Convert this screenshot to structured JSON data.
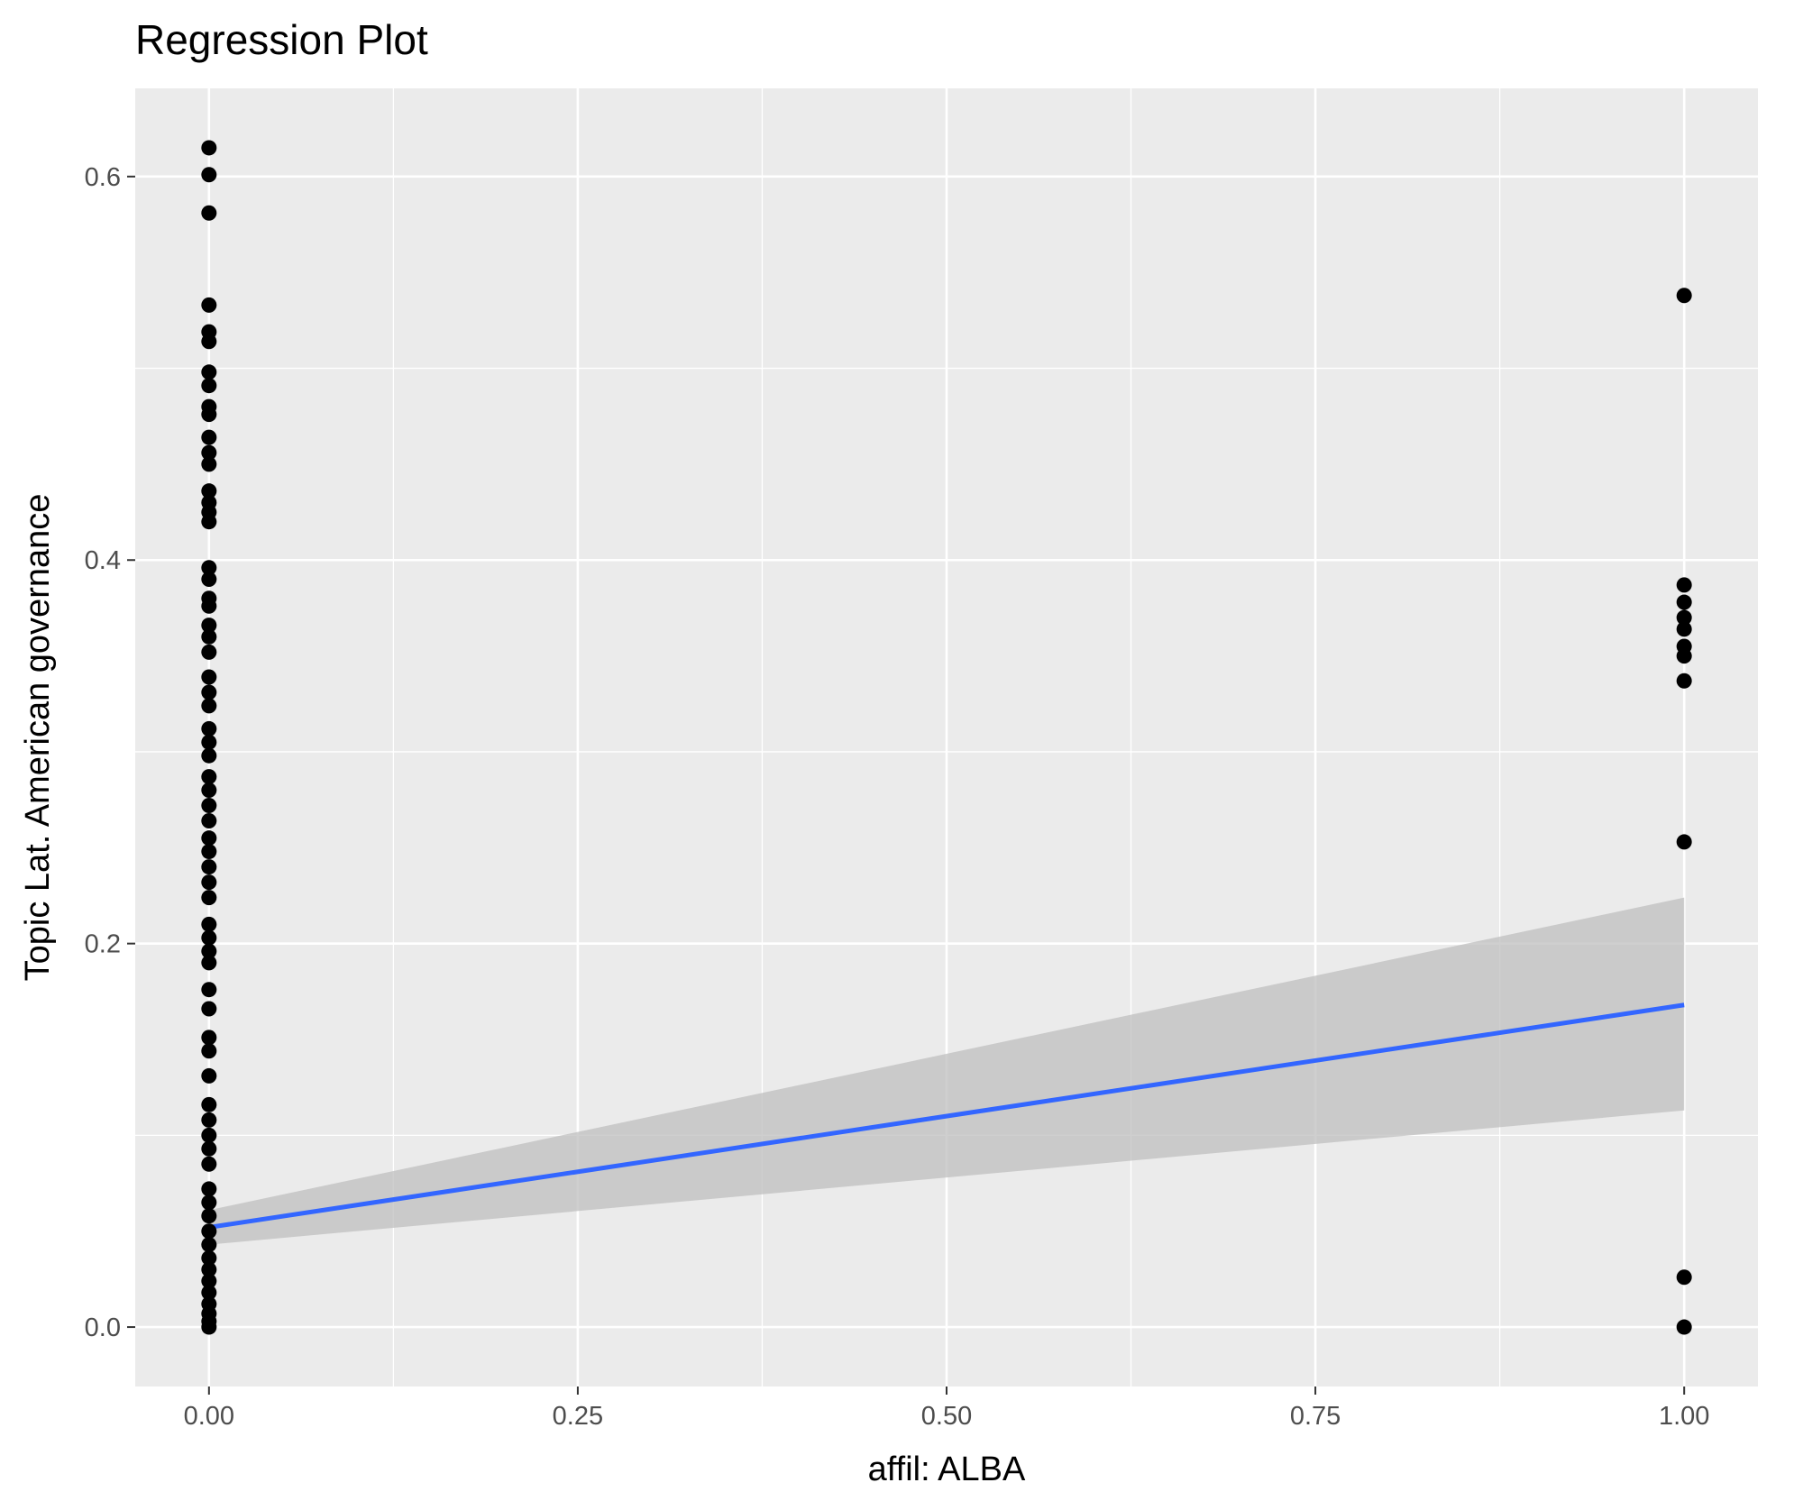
{
  "chart_data": {
    "type": "scatter",
    "title": "Regression Plot",
    "xlabel": "affil: ALBA",
    "ylabel": "Topic Lat. American governance",
    "xlim": [
      -0.05,
      1.05
    ],
    "ylim": [
      -0.031,
      0.646
    ],
    "x_ticks": [
      0.0,
      0.25,
      0.5,
      0.75,
      1.0
    ],
    "x_tick_labels": [
      "0.00",
      "0.25",
      "0.50",
      "0.75",
      "1.00"
    ],
    "y_ticks": [
      0.0,
      0.2,
      0.4,
      0.6
    ],
    "y_tick_labels": [
      "0.0",
      "0.2",
      "0.4",
      "0.6"
    ],
    "grid": true,
    "legend": "none",
    "points": [
      {
        "x": 0,
        "y": 0.615
      },
      {
        "x": 0,
        "y": 0.601
      },
      {
        "x": 0,
        "y": 0.581
      },
      {
        "x": 0,
        "y": 0.533
      },
      {
        "x": 0,
        "y": 0.519
      },
      {
        "x": 0,
        "y": 0.514
      },
      {
        "x": 0,
        "y": 0.498
      },
      {
        "x": 0,
        "y": 0.491
      },
      {
        "x": 0,
        "y": 0.48
      },
      {
        "x": 0,
        "y": 0.476
      },
      {
        "x": 0,
        "y": 0.464
      },
      {
        "x": 0,
        "y": 0.456
      },
      {
        "x": 0,
        "y": 0.45
      },
      {
        "x": 0,
        "y": 0.436
      },
      {
        "x": 0,
        "y": 0.43
      },
      {
        "x": 0,
        "y": 0.425
      },
      {
        "x": 0,
        "y": 0.42
      },
      {
        "x": 0,
        "y": 0.396
      },
      {
        "x": 0,
        "y": 0.39
      },
      {
        "x": 0,
        "y": 0.38
      },
      {
        "x": 0,
        "y": 0.376
      },
      {
        "x": 0,
        "y": 0.366
      },
      {
        "x": 0,
        "y": 0.36
      },
      {
        "x": 0,
        "y": 0.352
      },
      {
        "x": 0,
        "y": 0.339
      },
      {
        "x": 0,
        "y": 0.331
      },
      {
        "x": 0,
        "y": 0.324
      },
      {
        "x": 0,
        "y": 0.312
      },
      {
        "x": 0,
        "y": 0.305
      },
      {
        "x": 0,
        "y": 0.298
      },
      {
        "x": 0,
        "y": 0.287
      },
      {
        "x": 0,
        "y": 0.28
      },
      {
        "x": 0,
        "y": 0.272
      },
      {
        "x": 0,
        "y": 0.264
      },
      {
        "x": 0,
        "y": 0.255
      },
      {
        "x": 0,
        "y": 0.248
      },
      {
        "x": 0,
        "y": 0.24
      },
      {
        "x": 0,
        "y": 0.232
      },
      {
        "x": 0,
        "y": 0.224
      },
      {
        "x": 0,
        "y": 0.21
      },
      {
        "x": 0,
        "y": 0.203
      },
      {
        "x": 0,
        "y": 0.196
      },
      {
        "x": 0,
        "y": 0.19
      },
      {
        "x": 0,
        "y": 0.176
      },
      {
        "x": 0,
        "y": 0.166
      },
      {
        "x": 0,
        "y": 0.151
      },
      {
        "x": 0,
        "y": 0.144
      },
      {
        "x": 0,
        "y": 0.131
      },
      {
        "x": 0,
        "y": 0.116
      },
      {
        "x": 0,
        "y": 0.108
      },
      {
        "x": 0,
        "y": 0.1
      },
      {
        "x": 0,
        "y": 0.093
      },
      {
        "x": 0,
        "y": 0.085
      },
      {
        "x": 0,
        "y": 0.072
      },
      {
        "x": 0,
        "y": 0.065
      },
      {
        "x": 0,
        "y": 0.058
      },
      {
        "x": 0,
        "y": 0.05
      },
      {
        "x": 0,
        "y": 0.043
      },
      {
        "x": 0,
        "y": 0.036
      },
      {
        "x": 0,
        "y": 0.03
      },
      {
        "x": 0,
        "y": 0.024
      },
      {
        "x": 0,
        "y": 0.018
      },
      {
        "x": 0,
        "y": 0.012
      },
      {
        "x": 0,
        "y": 0.007
      },
      {
        "x": 0,
        "y": 0.003
      },
      {
        "x": 0,
        "y": 0.0
      },
      {
        "x": 1,
        "y": 0.538
      },
      {
        "x": 1,
        "y": 0.387
      },
      {
        "x": 1,
        "y": 0.378
      },
      {
        "x": 1,
        "y": 0.37
      },
      {
        "x": 1,
        "y": 0.364
      },
      {
        "x": 1,
        "y": 0.355
      },
      {
        "x": 1,
        "y": 0.35
      },
      {
        "x": 1,
        "y": 0.337
      },
      {
        "x": 1,
        "y": 0.253
      },
      {
        "x": 1,
        "y": 0.026
      },
      {
        "x": 1,
        "y": 0.0
      }
    ],
    "regression": {
      "x": [
        0,
        1
      ],
      "y": [
        0.052,
        0.168
      ],
      "ci_lower": [
        0.043,
        0.113
      ],
      "ci_upper": [
        0.061,
        0.224
      ]
    },
    "colors": {
      "panel": "#ebebeb",
      "grid": "#ffffff",
      "points": "#000000",
      "line": "#3366ff",
      "ribbon": "#bfbfbf",
      "text": "#000000",
      "tick_text": "#4d4d4d",
      "tick_mark": "#333333"
    }
  }
}
